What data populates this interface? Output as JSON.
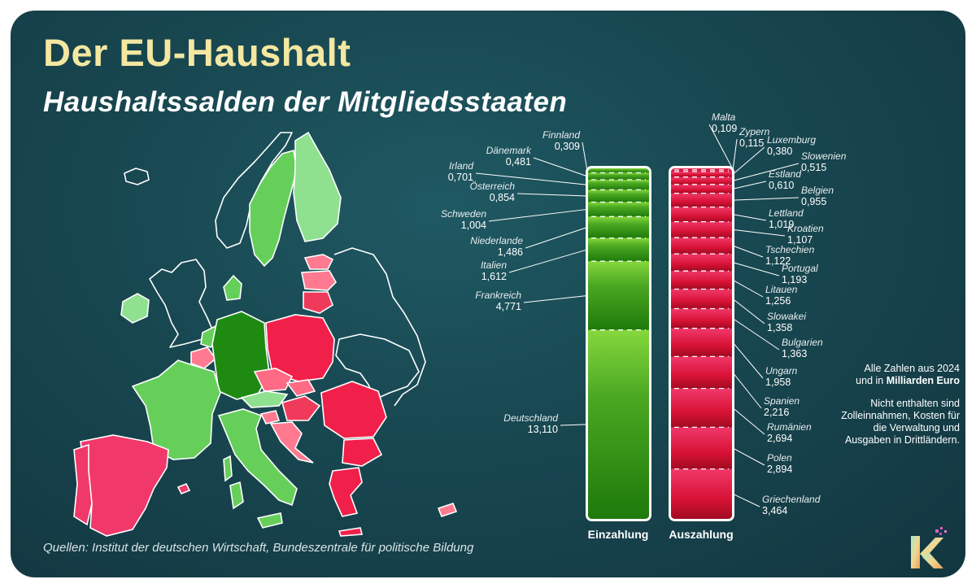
{
  "header": {
    "title": "Der EU-Haushalt",
    "subtitle": "Haushaltssalden der Mitgliedsstaaten"
  },
  "source": "Quellen: Institut der deutschen Wirtschaft, Bundeszentrale für politische Bildung",
  "note": {
    "line1": "Alle Zahlen aus 2024",
    "line2_prefix": "und in ",
    "line2_bold": "Milliarden Euro",
    "disclaimer": "Nicht enthalten sind Zolleinnahmen, Kosten für die Verwaltung und Ausgaben in Drittländern."
  },
  "colors": {
    "background": "#184750",
    "title": "#f4e7a1",
    "payer_green": "#2a8a10",
    "receiver_red": "#d81e40",
    "light_green": "#8fe08f",
    "pink": "#ff7a90"
  },
  "chart_data": {
    "type": "bar",
    "stacked": true,
    "series": [
      {
        "name": "Einzahlung",
        "categories": [
          "Finnland",
          "Dänemark",
          "Irland",
          "Österreich",
          "Schweden",
          "Niederlande",
          "Italien",
          "Frankreich",
          "Deutschland"
        ],
        "values": [
          "0,309",
          "0,481",
          "0,701",
          "0,854",
          "1,004",
          "1,486",
          "1,612",
          "4,771",
          "13,110"
        ]
      },
      {
        "name": "Auszahlung",
        "categories": [
          "Malta",
          "Zypern",
          "Luxemburg",
          "Slowenien",
          "Estland",
          "Belgien",
          "Lettland",
          "Kroatien",
          "Tschechien",
          "Portugal",
          "Litauen",
          "Slowakei",
          "Bulgarien",
          "Ungarn",
          "Spanien",
          "Rumänien",
          "Polen",
          "Griechenland"
        ],
        "values": [
          "0,109",
          "0,115",
          "0,380",
          "0,515",
          "0,610",
          "0,955",
          "1,019",
          "1,107",
          "1,122",
          "1,193",
          "1,256",
          "1,358",
          "1,363",
          "1,958",
          "2,216",
          "2,694",
          "2,894",
          "3,464"
        ]
      }
    ]
  }
}
